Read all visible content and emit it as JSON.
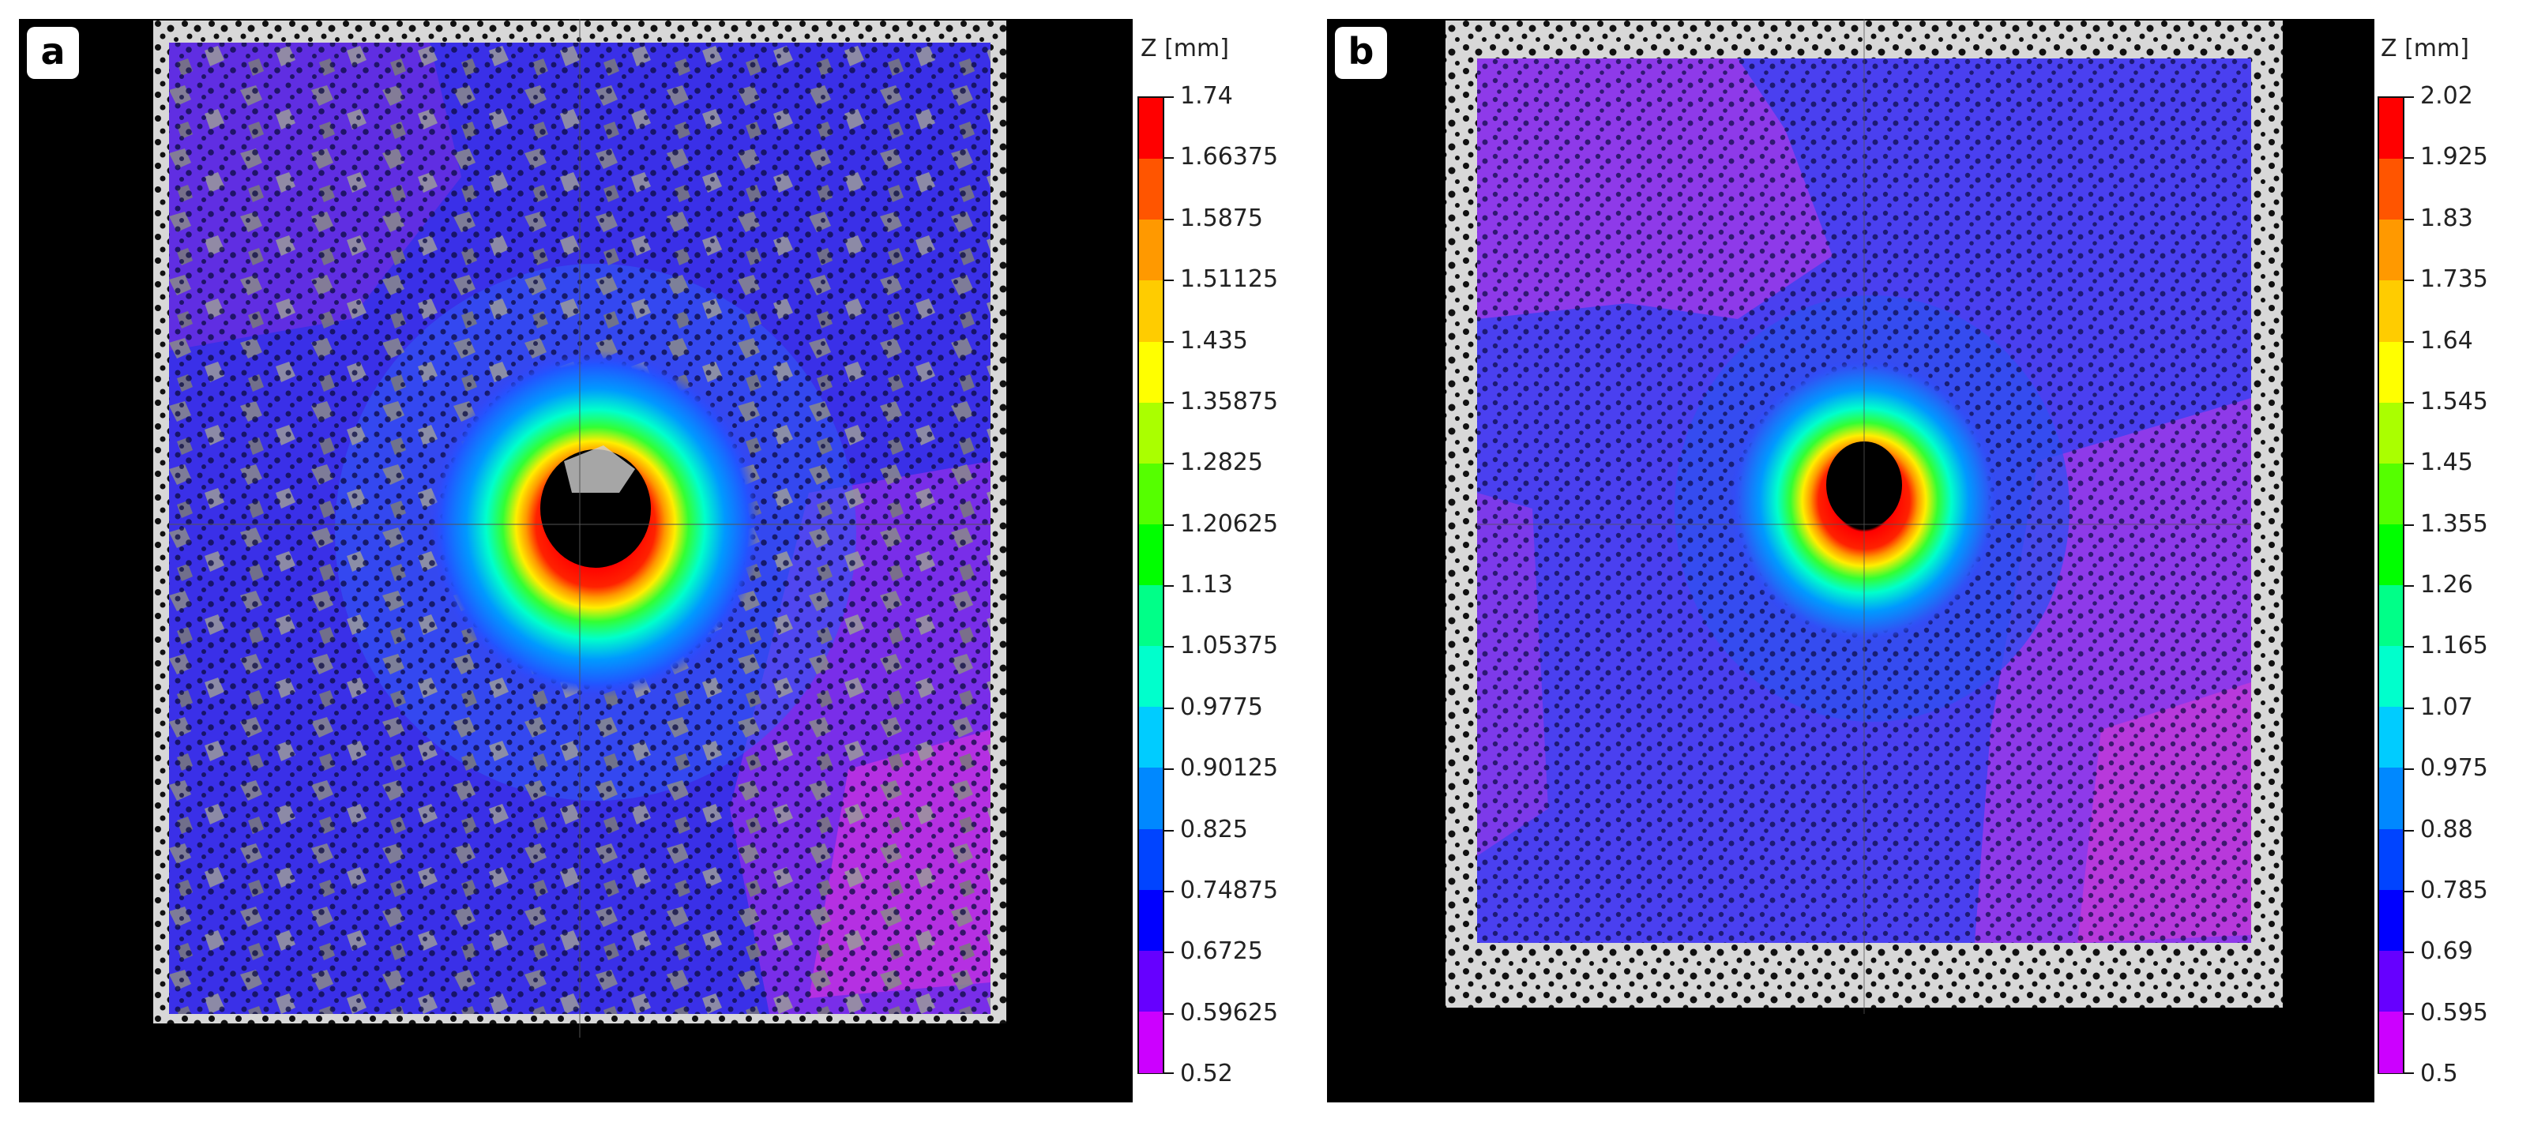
{
  "panels": [
    {
      "label": "a",
      "legend": {
        "title": "Z [mm]",
        "ticks": [
          "1.74",
          "1.66375",
          "1.5875",
          "1.51125",
          "1.435",
          "1.35875",
          "1.2825",
          "1.20625",
          "1.13",
          "1.05375",
          "0.9775",
          "0.90125",
          "0.825",
          "0.74875",
          "0.6725",
          "0.59625",
          "0.52"
        ]
      }
    },
    {
      "label": "b",
      "legend": {
        "title": "Z [mm]",
        "ticks": [
          "2.02",
          "1.925",
          "1.83",
          "1.735",
          "1.64",
          "1.545",
          "1.45",
          "1.355",
          "1.26",
          "1.165",
          "1.07",
          "0.975",
          "0.88",
          "0.785",
          "0.69",
          "0.595",
          "0.5"
        ]
      }
    }
  ],
  "colorbar_colors": [
    "#ff0000",
    "#ff5500",
    "#ff9900",
    "#ffcc00",
    "#ffff00",
    "#aaff00",
    "#55ff00",
    "#00ff00",
    "#00ff88",
    "#00ffcc",
    "#00ccff",
    "#0088ff",
    "#0044ff",
    "#0000ff",
    "#6600ff",
    "#cc00ff"
  ]
}
